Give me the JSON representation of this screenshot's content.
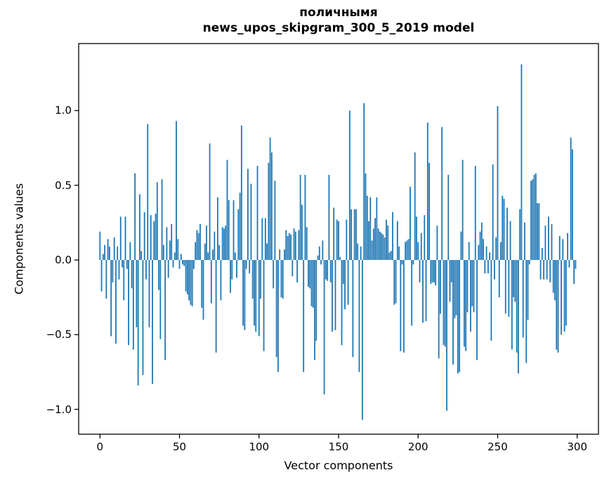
{
  "chart_data": {
    "type": "bar",
    "title": "поличнымя",
    "subtitle": "news_upos_skipgram_300_5_2019 model",
    "xlabel": "Vector components",
    "ylabel": "Components values",
    "legend": null,
    "grid": false,
    "bar_color": "#1f77b4",
    "axis_color": "#000000",
    "n_bars": 300,
    "xlim": [
      -13.4,
      313.4
    ],
    "ylim": [
      -1.17,
      1.45
    ],
    "xticks": [
      0,
      50,
      100,
      150,
      200,
      250,
      300
    ],
    "ytick_labels": [
      "1.0",
      "0.5",
      "0.0",
      "−0.5",
      "−1.0"
    ],
    "ytick_values": [
      1.0,
      0.5,
      0.0,
      -0.5,
      -1.0
    ],
    "values": [
      0.19,
      -0.21,
      0.04,
      0.1,
      -0.26,
      0.14,
      0.09,
      -0.51,
      -0.15,
      0.15,
      -0.56,
      0.09,
      -0.13,
      0.29,
      -0.05,
      -0.27,
      0.29,
      -0.06,
      -0.57,
      0.12,
      -0.19,
      -0.6,
      0.58,
      -0.45,
      -0.84,
      0.44,
      0.06,
      -0.77,
      0.32,
      -0.13,
      0.91,
      -0.45,
      0.3,
      -0.83,
      0.26,
      0.31,
      0.52,
      -0.2,
      -0.53,
      0.54,
      0.1,
      -0.67,
      0.22,
      -0.12,
      0.13,
      0.24,
      -0.05,
      0.05,
      0.93,
      0.14,
      -0.06,
      0.04,
      -0.03,
      -0.04,
      -0.21,
      -0.23,
      -0.27,
      -0.3,
      -0.31,
      -0.06,
      0.12,
      0.2,
      0.18,
      0.24,
      -0.32,
      -0.4,
      0.11,
      0.23,
      0.05,
      0.78,
      -0.29,
      0.07,
      0.19,
      -0.62,
      0.42,
      0.1,
      -0.27,
      0.22,
      0.21,
      0.23,
      0.67,
      0.4,
      -0.22,
      -0.13,
      0.4,
      0.05,
      -0.12,
      0.34,
      0.45,
      0.9,
      -0.44,
      -0.47,
      -0.06,
      0.61,
      -0.09,
      0.51,
      -0.26,
      -0.44,
      -0.48,
      0.63,
      -0.51,
      -0.26,
      0.28,
      -0.61,
      0.28,
      0.11,
      0.65,
      0.82,
      0.72,
      -0.19,
      0.53,
      -0.65,
      -0.75,
      0.07,
      -0.25,
      -0.26,
      0.07,
      0.2,
      0.16,
      0.18,
      0.17,
      -0.11,
      0.21,
      0.19,
      -0.15,
      0.2,
      0.57,
      0.37,
      -0.75,
      0.57,
      0.22,
      -0.18,
      -0.19,
      -0.31,
      -0.32,
      -0.67,
      -0.54,
      0.03,
      0.09,
      -0.03,
      0.13,
      -0.9,
      -0.13,
      -0.14,
      0.57,
      -0.15,
      -0.48,
      0.35,
      -0.47,
      0.27,
      0.26,
      0.02,
      -0.57,
      -0.16,
      -0.33,
      0.27,
      -0.3,
      1.0,
      0.34,
      -0.65,
      0.34,
      0.34,
      0.11,
      -0.75,
      0.09,
      -1.07,
      1.05,
      0.58,
      0.43,
      0.26,
      0.42,
      0.13,
      0.21,
      0.28,
      0.42,
      0.21,
      0.19,
      0.18,
      0.17,
      0.15,
      0.27,
      0.23,
      0.05,
      0.06,
      0.32,
      -0.3,
      -0.29,
      0.26,
      0.09,
      -0.61,
      -0.03,
      -0.62,
      0.12,
      0.13,
      0.14,
      0.49,
      -0.44,
      -0.03,
      0.72,
      0.29,
      0.12,
      -0.15,
      0.18,
      -0.42,
      0.3,
      -0.41,
      0.92,
      0.65,
      -0.16,
      -0.15,
      -0.15,
      -0.17,
      0.23,
      -0.66,
      -0.36,
      0.89,
      -0.57,
      -0.58,
      -1.01,
      0.57,
      -0.28,
      -0.15,
      -0.7,
      -0.39,
      -0.37,
      -0.76,
      -0.75,
      0.19,
      0.67,
      -0.58,
      -0.61,
      -0.35,
      0.12,
      -0.48,
      -0.31,
      -0.35,
      0.63,
      -0.67,
      0.1,
      0.19,
      0.25,
      0.14,
      -0.09,
      0.09,
      -0.09,
      0.05,
      -0.54,
      0.64,
      -0.13,
      0.15,
      1.03,
      -0.25,
      0.12,
      0.43,
      0.41,
      -0.36,
      0.35,
      -0.38,
      0.26,
      -0.6,
      -0.25,
      -0.28,
      -0.62,
      -0.76,
      0.34,
      1.31,
      -0.52,
      0.25,
      -0.69,
      -0.4,
      -0.03,
      0.53,
      0.54,
      0.57,
      0.58,
      0.38,
      0.38,
      -0.13,
      0.08,
      -0.13,
      0.23,
      -0.13,
      0.29,
      -0.15,
      0.24,
      -0.22,
      -0.27,
      -0.6,
      -0.62,
      0.16,
      -0.5,
      0.14,
      -0.48,
      -0.44,
      0.18,
      -0.05,
      0.82,
      0.74,
      -0.16,
      -0.06
    ]
  },
  "layout_labels": {
    "figure_name": "bar chart of word-vector components"
  }
}
